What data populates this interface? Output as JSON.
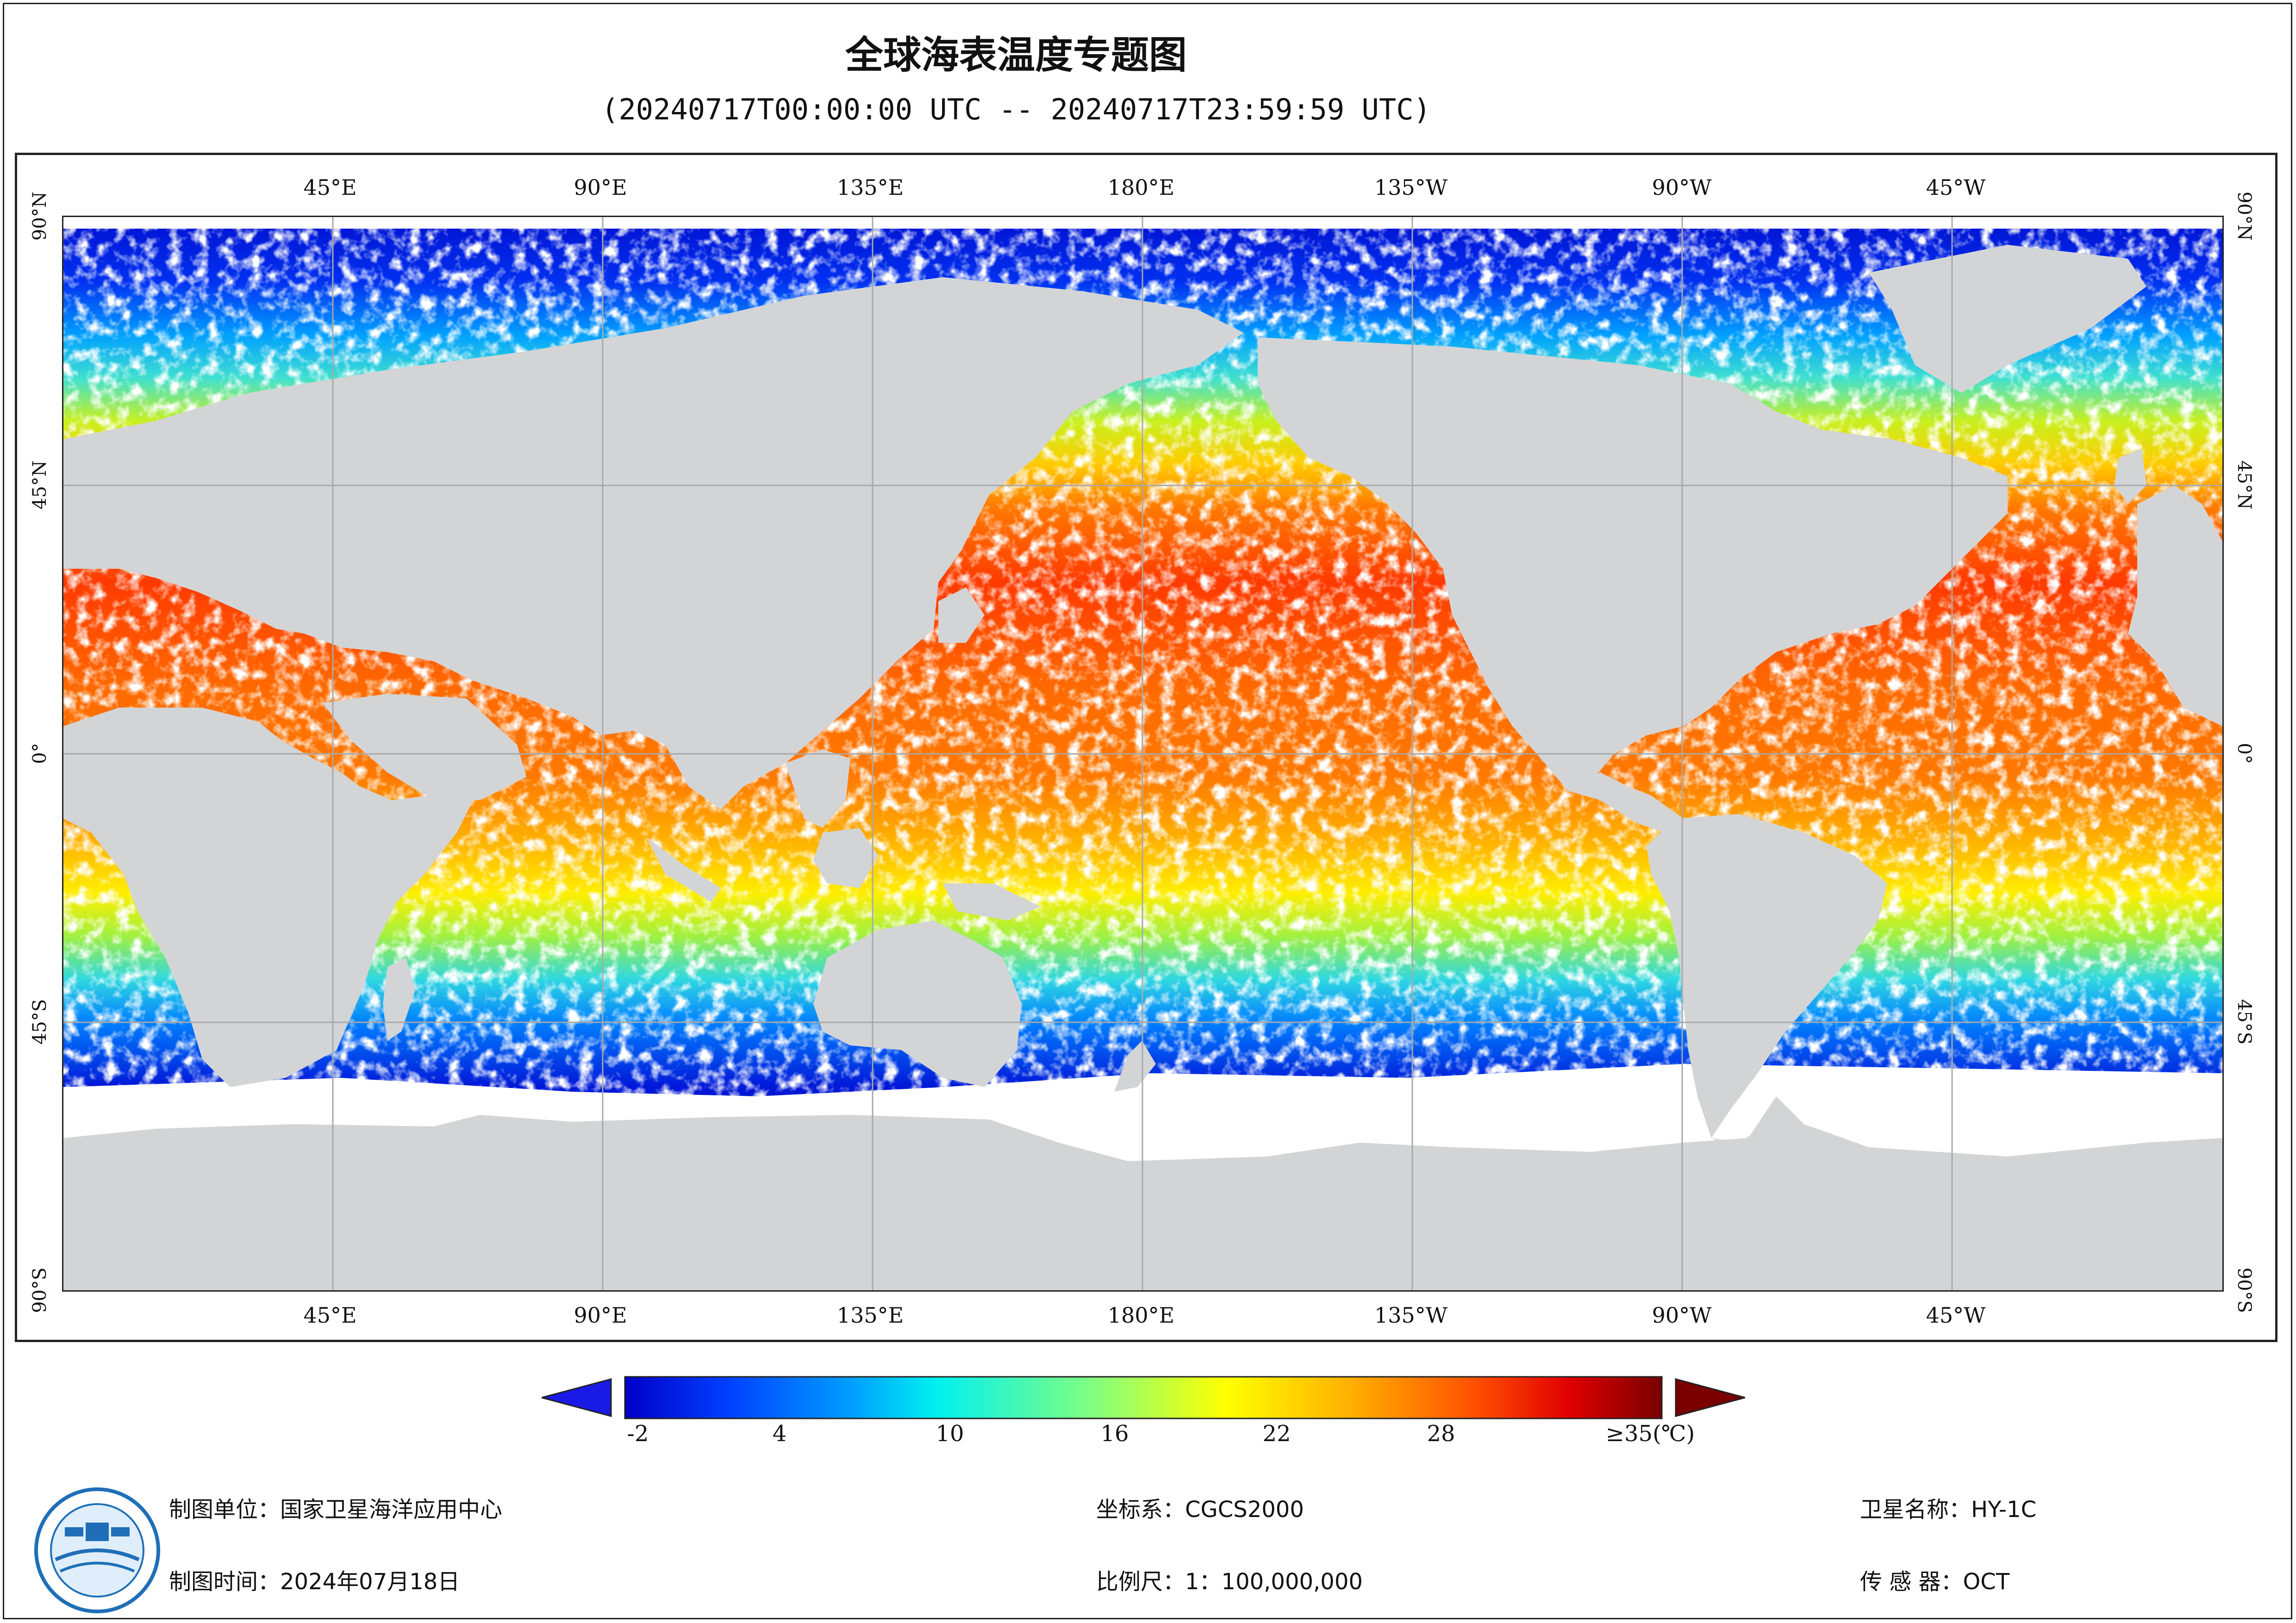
{
  "title": "全球海表温度专题图",
  "subtitle": "(20240717T00:00:00 UTC -- 20240717T23:59:59 UTC)",
  "map": {
    "top_lon_labels": [
      "45°E",
      "90°E",
      "135°E",
      "180°E",
      "135°W",
      "90°W",
      "45°W"
    ],
    "bottom_lon_labels": [
      "45°E",
      "90°E",
      "135°E",
      "180°E",
      "135°W",
      "90°W",
      "45°W"
    ],
    "left_lat_labels": [
      "90°N",
      "45°N",
      "0°",
      "45°S",
      "90°S"
    ],
    "right_lat_labels": [
      "90°N",
      "45°N",
      "0°",
      "45°S",
      "90°S"
    ],
    "land_color": "#d3d4d6",
    "nodata_color": "#ffffff",
    "grid_color": "#a8a8a8"
  },
  "colorbar": {
    "ticks": [
      "-2",
      "4",
      "10",
      "16",
      "22",
      "28",
      "≥35(℃)"
    ],
    "range": [
      -3,
      35
    ],
    "colormap": [
      "#0000c8",
      "#0040ff",
      "#00a0ff",
      "#00ffff",
      "#80ff80",
      "#ffff00",
      "#ffb000",
      "#ff5000",
      "#e00000",
      "#7a0000"
    ],
    "under_color": "#1a1ae6",
    "over_color": "#7a0000"
  },
  "footer": {
    "org": "制图单位：国家卫星海洋应用中心",
    "date": "制图时间：2024年07月18日",
    "crs": "坐标系：CGCS2000",
    "scale": "比例尺：1：100,000,000",
    "satellite": "卫星名称：HY-1C",
    "sensor": "传 感 器：OCT"
  }
}
